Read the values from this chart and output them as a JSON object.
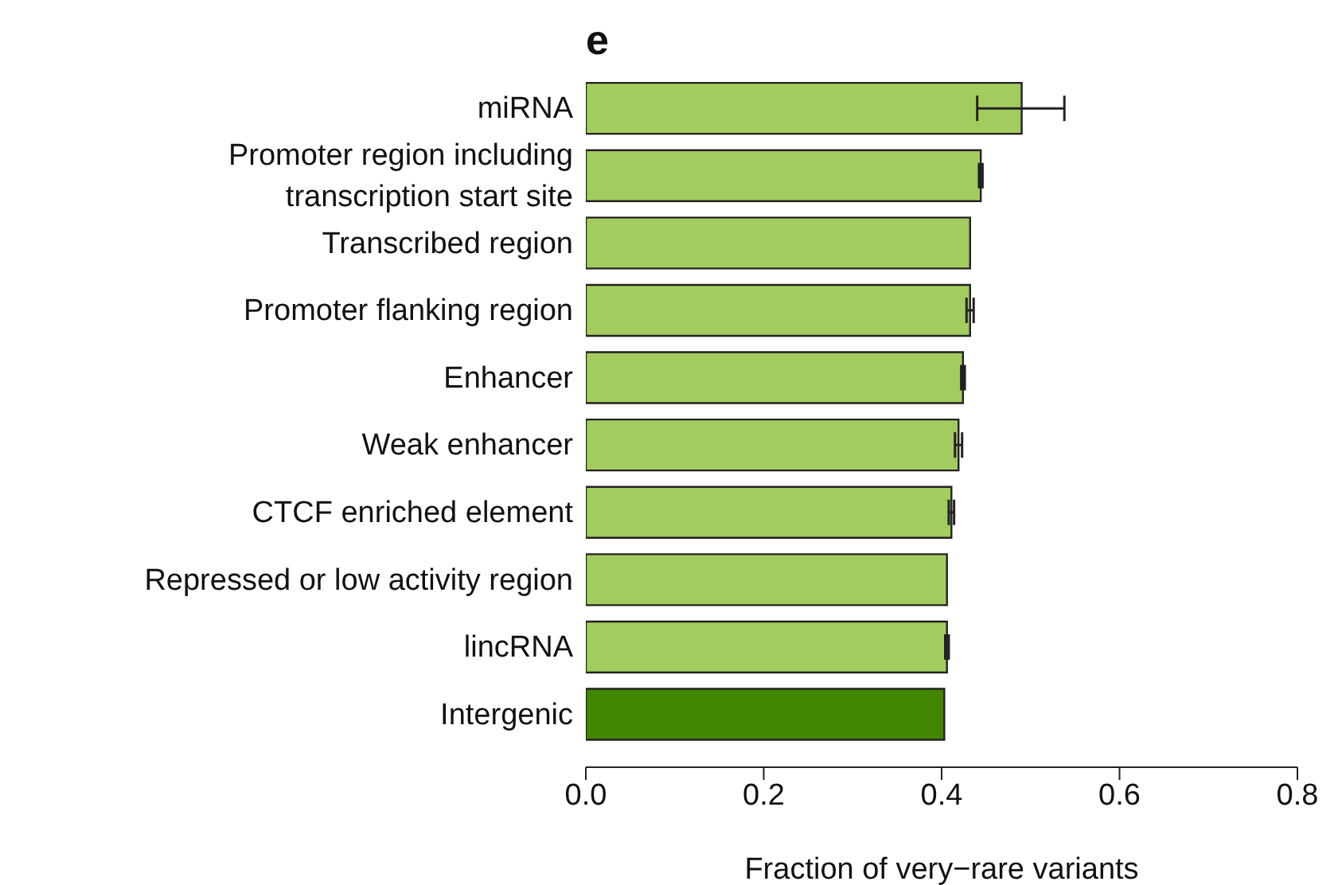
{
  "chart_data": {
    "type": "bar",
    "orientation": "horizontal",
    "title": "e",
    "xlabel": "Fraction of very−rare variants",
    "categories": [
      "miRNA",
      "Promoter region including transcription start site",
      "Transcribed region",
      "Promoter flanking region",
      "Enhancer",
      "Weak enhancer",
      "CTCF enriched element",
      "Repressed or low activity region",
      "lincRNA",
      "Intergenic"
    ],
    "values": [
      0.49,
      0.444,
      0.432,
      0.432,
      0.424,
      0.419,
      0.411,
      0.406,
      0.406,
      0.403
    ],
    "errors": [
      [
        0.44,
        0.538
      ],
      0.002,
      null,
      0.004,
      0.002,
      0.004,
      0.003,
      null,
      0.002,
      null
    ],
    "colors": [
      "#a3cc5e",
      "#a3cc5e",
      "#a3cc5e",
      "#a3cc5e",
      "#a3cc5e",
      "#a3cc5e",
      "#a3cc5e",
      "#a3cc5e",
      "#a3cc5e",
      "#428500"
    ],
    "xlim": [
      0,
      0.8
    ],
    "xticks": [
      {
        "value": 0,
        "label": "0.0"
      },
      {
        "value": 0.2,
        "label": "0.2"
      },
      {
        "value": 0.4,
        "label": "0.4"
      },
      {
        "value": 0.6,
        "label": "0.6"
      },
      {
        "value": 0.8,
        "label": "0.8"
      }
    ],
    "grid": false,
    "legend": false
  }
}
